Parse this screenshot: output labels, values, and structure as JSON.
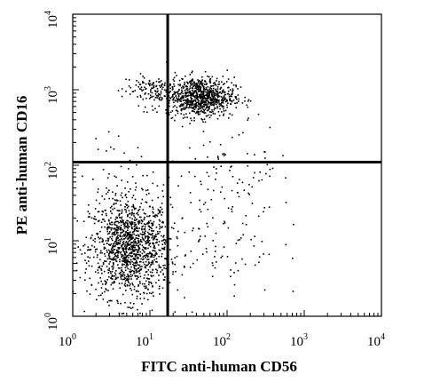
{
  "chart_data": {
    "type": "scatter",
    "title": "",
    "xlabel": "FITC anti-human CD56",
    "ylabel": "PE anti-human CD16",
    "xscale": "log",
    "yscale": "log",
    "xlim": [
      1,
      10000
    ],
    "ylim": [
      1,
      10000
    ],
    "x_ticks": [
      {
        "base": "10",
        "exp": "0"
      },
      {
        "base": "10",
        "exp": "1"
      },
      {
        "base": "10",
        "exp": "2"
      },
      {
        "base": "10",
        "exp": "3"
      },
      {
        "base": "10",
        "exp": "4"
      }
    ],
    "y_ticks": [
      {
        "base": "10",
        "exp": "0"
      },
      {
        "base": "10",
        "exp": "1"
      },
      {
        "base": "10",
        "exp": "2"
      },
      {
        "base": "10",
        "exp": "3"
      },
      {
        "base": "10",
        "exp": "4"
      }
    ],
    "gates": {
      "x": 17,
      "y": 110
    },
    "grid": false,
    "legend": "none",
    "colors": {
      "points": "#000000",
      "axes": "#000000",
      "gate_lines": "#000000"
    },
    "populations": [
      {
        "center": [
          5.5,
          8
        ],
        "spread_log": [
          0.26,
          0.33
        ],
        "count": 1300
      },
      {
        "center": [
          45,
          800
        ],
        "spread_log": [
          0.22,
          0.13
        ],
        "count": 850
      },
      {
        "center": [
          10,
          1000
        ],
        "spread_log": [
          0.18,
          0.1
        ],
        "count": 120
      },
      {
        "center": [
          60,
          15
        ],
        "spread_log": [
          0.45,
          0.5
        ],
        "count": 130
      },
      {
        "center": [
          150,
          100
        ],
        "spread_log": [
          0.35,
          0.3
        ],
        "count": 60
      },
      {
        "center": [
          4,
          80
        ],
        "spread_log": [
          0.25,
          0.25
        ],
        "count": 40
      }
    ]
  }
}
